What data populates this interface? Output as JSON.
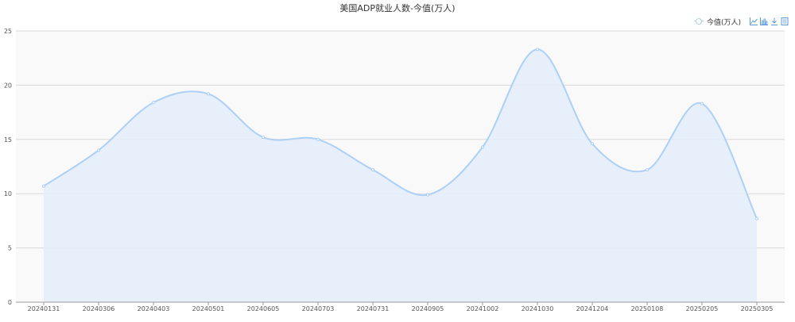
{
  "chart_data": {
    "type": "area",
    "title": "美国ADP就业人数-今值(万人)",
    "legend": {
      "items": [
        "今值(万人)"
      ],
      "placement": "top-right"
    },
    "x": [
      "20240131",
      "20240306",
      "20240403",
      "20240501",
      "20240605",
      "20240703",
      "20240731",
      "20240905",
      "20241002",
      "20241030",
      "20241204",
      "20250108",
      "20250205",
      "20250305"
    ],
    "series": [
      {
        "name": "今值(万人)",
        "values": [
          10.7,
          14.0,
          18.4,
          19.2,
          15.2,
          15.0,
          12.2,
          9.9,
          14.3,
          23.3,
          14.6,
          12.2,
          18.3,
          7.7
        ]
      }
    ],
    "ylim": [
      0,
      25
    ],
    "yticks": [
      "0",
      "5",
      "10",
      "15",
      "20",
      "25"
    ],
    "grid": true,
    "colors": {
      "line": "#aed0f6",
      "fill": "#e3edfa",
      "plot_bg": "#f9f9f9",
      "grid": "#d9d9d9",
      "axis_text": "#555555"
    }
  },
  "toolbox": {
    "icons": [
      "line-chart-icon",
      "bar-chart-icon",
      "download-icon",
      "data-view-icon"
    ]
  }
}
